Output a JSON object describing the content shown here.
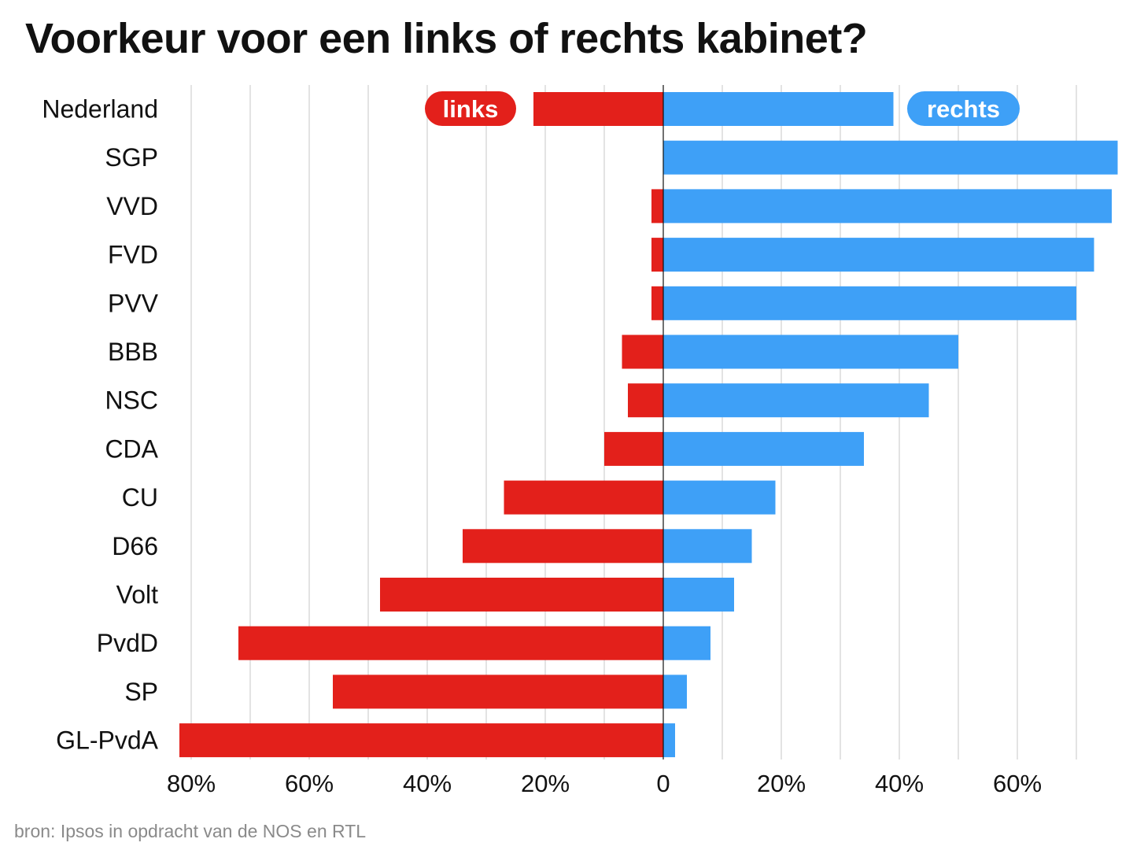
{
  "title": "Voorkeur voor een links of rechts kabinet?",
  "source": "bron: Ipsos in opdracht van de NOS en RTL",
  "colors": {
    "links": "#e3201b",
    "rechts": "#3ea0f7",
    "grid": "#d0d0d0",
    "axis": "#111111"
  },
  "chart_data": {
    "type": "bar",
    "orientation": "horizontal-diverging",
    "title": "Voorkeur voor een links of rechts kabinet?",
    "categories": [
      "Nederland",
      "SGP",
      "VVD",
      "FVD",
      "PVV",
      "BBB",
      "NSC",
      "CDA",
      "CU",
      "D66",
      "Volt",
      "PvdD",
      "SP",
      "GL-PvdA"
    ],
    "series": [
      {
        "name": "links",
        "values": [
          22,
          0,
          2,
          2,
          2,
          7,
          6,
          10,
          27,
          34,
          48,
          72,
          56,
          82
        ]
      },
      {
        "name": "rechts",
        "values": [
          39,
          77,
          76,
          73,
          70,
          50,
          45,
          34,
          19,
          15,
          12,
          8,
          4,
          2
        ]
      }
    ],
    "xlim": [
      -80,
      77
    ],
    "x_ticks": [
      -80,
      -60,
      -40,
      -20,
      0,
      20,
      40,
      60
    ],
    "x_tick_labels": [
      "80%",
      "60%",
      "40%",
      "20%",
      "0",
      "20%",
      "40%",
      "60%"
    ],
    "gridlines": [
      -80,
      -70,
      -60,
      -50,
      -40,
      -30,
      -20,
      -10,
      10,
      20,
      30,
      40,
      50,
      60,
      70
    ],
    "grid": true,
    "legend": "inline labels in first row"
  }
}
